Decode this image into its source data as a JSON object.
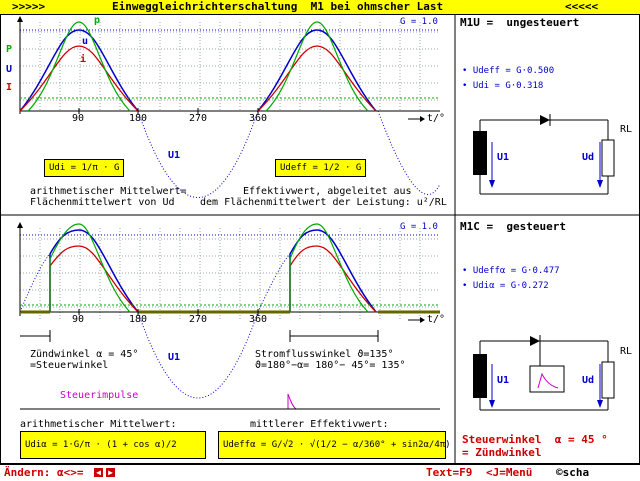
{
  "title": {
    "left_arrows": ">>>>>",
    "text": "Einweggleichrichterschaltung  M1 bei ohmscher Last",
    "right_arrows": "<<<<<"
  },
  "top_chart": {
    "labels_left": {
      "p": "P",
      "u": "U",
      "i": "I"
    },
    "curve_labels": {
      "p": "p",
      "u": "u",
      "i": "i"
    },
    "g_label": "G = 1.0",
    "x_ticks": [
      "90",
      "180",
      "270",
      "360"
    ],
    "x_axis_label": "t/°",
    "u1_label": "U1",
    "formula_udi": "Udi = 1/π · G",
    "formula_udeff": "Udeff = 1/2 · G",
    "text_left_1": "arithmetischer Mittelwert=",
    "text_left_2": "Flächenmittelwert von Ud",
    "text_right_1": "Effektivwert, abgeleitet aus",
    "text_right_2": "dem Flächenmittelwert der Leistung: u²/RL"
  },
  "top_panel": {
    "title": "M1U =  ungesteuert",
    "value_1": "• Udeff = G·0.500",
    "value_2": "• Udi = G·0.318",
    "label_u1": "U1",
    "label_ud": "Ud",
    "label_rl": "RL"
  },
  "bottom_chart": {
    "g_label": "G = 1.0",
    "x_ticks": [
      "90",
      "180",
      "270",
      "360"
    ],
    "x_axis_label": "t/°",
    "u1_label": "U1",
    "text_zund_1": "Zündwinkel α = 45°",
    "text_zund_2": "=Steuerwinkel",
    "text_strom_1": "Stromflusswinkel ϑ=135°",
    "text_strom_2": "ϑ=180°−α= 180°− 45°= 135°",
    "steuerimpulse": "Steuerimpulse",
    "text_arith": "arithmetischer Mittelwert:",
    "text_eff": "mittlerer Effektivwert:",
    "formula_udia": "Udiα = 1·G/π · (1 + cos α)/2",
    "formula_udeffa": "Udeffα = G/√2 · √(1/2 − α/360° + sin2α/4π)"
  },
  "bottom_panel": {
    "title": "M1C =  gesteuert",
    "value_1": "• Udeffα = G·0.477",
    "value_2": "• Udiα = G·0.272",
    "label_u1": "U1",
    "label_ud": "Ud",
    "label_rl": "RL",
    "steuerwinkel_1": "Steuerwinkel  α = 45 °",
    "steuerwinkel_2": "= Zündwinkel"
  },
  "status": {
    "change_label": "Ändern: α<>=",
    "text_f9": "Text=F9",
    "menu": "<J=Menü",
    "copyright": "©scha"
  },
  "colors": {
    "title_bg": "#ffff00",
    "p_curve": "#00aa00",
    "u_curve": "#0000cc",
    "i_curve": "#cc0000",
    "accent_red": "#cc0000"
  }
}
